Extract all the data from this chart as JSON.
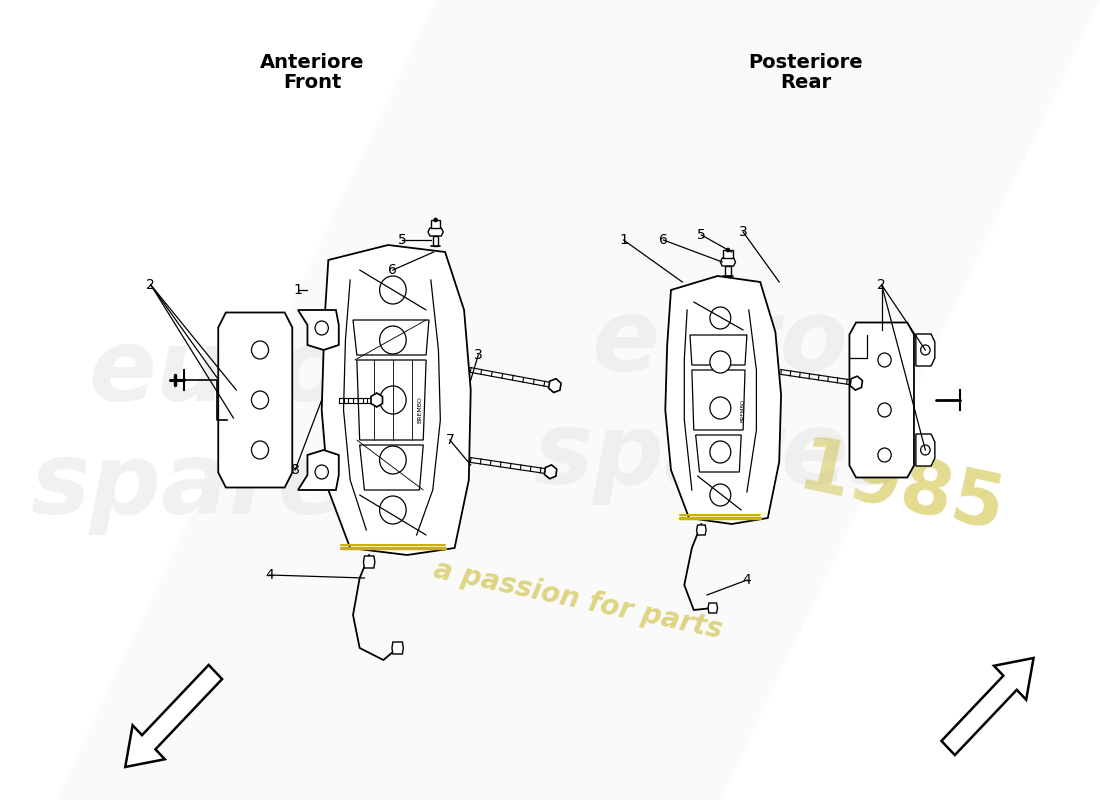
{
  "background_color": "#ffffff",
  "front_title_line1": "Anteriore",
  "front_title_line2": "Front",
  "rear_title_line1": "Posteriore",
  "rear_title_line2": "Rear",
  "title_fontsize": 14,
  "label_fontsize": 10,
  "yellow": "#c8b400",
  "black": "#000000",
  "gray_wm": "#d0d0d0",
  "gold_wm": "#c8b820"
}
